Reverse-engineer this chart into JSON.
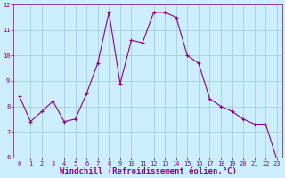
{
  "x": [
    0,
    1,
    2,
    3,
    4,
    5,
    6,
    7,
    8,
    9,
    10,
    11,
    12,
    13,
    14,
    15,
    16,
    17,
    18,
    19,
    20,
    21,
    22,
    23
  ],
  "y": [
    8.4,
    7.4,
    7.8,
    8.2,
    7.4,
    7.5,
    8.5,
    9.7,
    11.7,
    8.9,
    10.6,
    10.5,
    11.7,
    11.7,
    11.5,
    10.0,
    9.7,
    8.3,
    8.0,
    7.8,
    7.5,
    7.3,
    7.3,
    5.9
  ],
  "line_color": "#880088",
  "marker": "+",
  "marker_size": 3,
  "bg_color": "#cceeff",
  "grid_color": "#99cccc",
  "xlabel": "Windchill (Refroidissement éolien,°C)",
  "xlabel_color": "#880088",
  "ylim": [
    6,
    12
  ],
  "xlim": [
    -0.5,
    23.5
  ],
  "yticks": [
    6,
    7,
    8,
    9,
    10,
    11,
    12
  ],
  "xticks": [
    0,
    1,
    2,
    3,
    4,
    5,
    6,
    7,
    8,
    9,
    10,
    11,
    12,
    13,
    14,
    15,
    16,
    17,
    18,
    19,
    20,
    21,
    22,
    23
  ],
  "tick_color": "#880088",
  "tick_fontsize": 5,
  "xlabel_fontsize": 6.5,
  "linewidth": 0.8
}
